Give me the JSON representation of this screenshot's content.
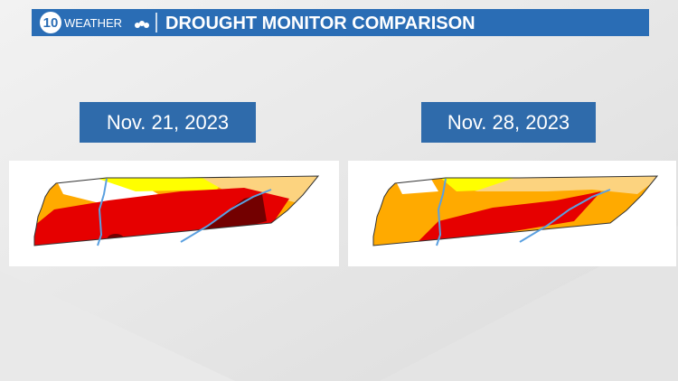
{
  "header": {
    "logo_number": "10",
    "logo_text": "WEATHER",
    "title": "DROUGHT MONITOR COMPARISON"
  },
  "panels": [
    {
      "date": "Nov. 21, 2023"
    },
    {
      "date": "Nov. 28, 2023"
    }
  ]
}
